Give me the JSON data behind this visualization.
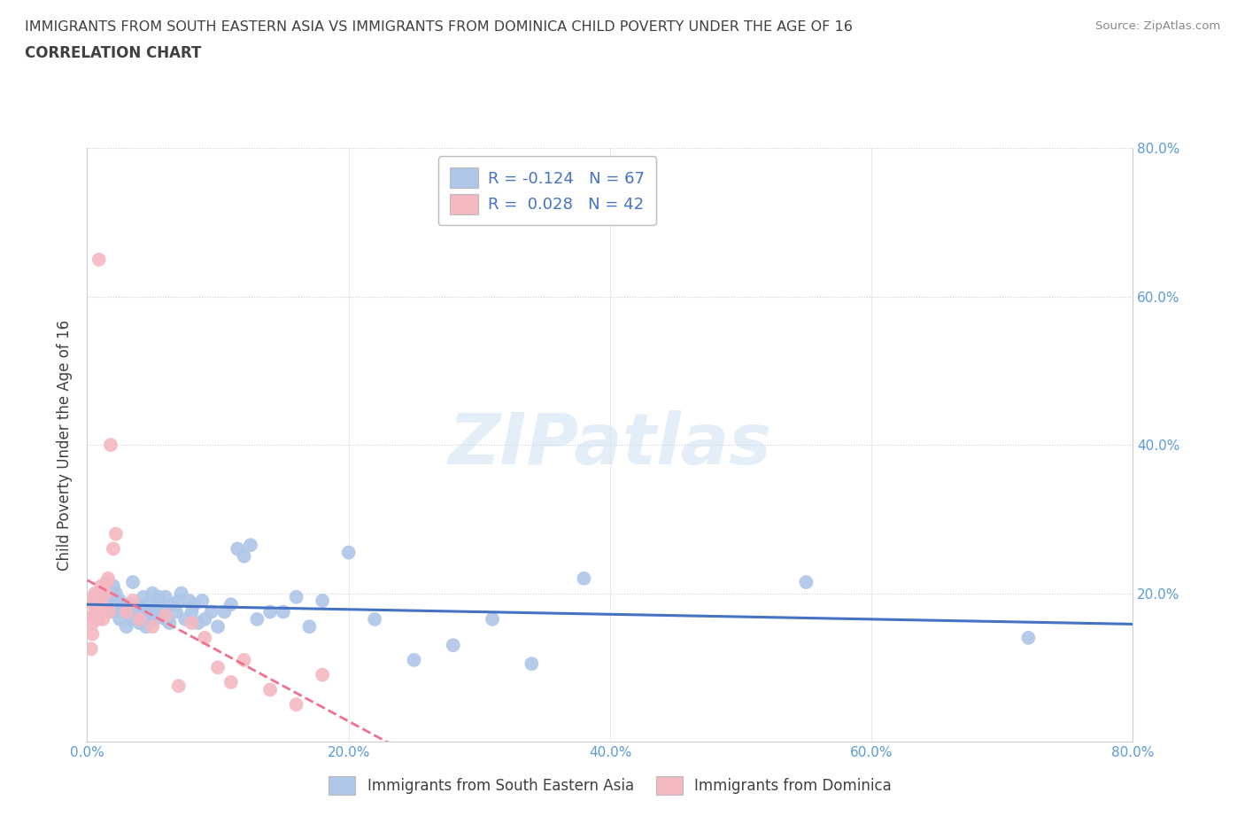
{
  "title": "IMMIGRANTS FROM SOUTH EASTERN ASIA VS IMMIGRANTS FROM DOMINICA CHILD POVERTY UNDER THE AGE OF 16",
  "subtitle": "CORRELATION CHART",
  "source": "Source: ZipAtlas.com",
  "ylabel": "Child Poverty Under the Age of 16",
  "xlim": [
    0.0,
    0.8
  ],
  "ylim": [
    0.0,
    0.8
  ],
  "xticks": [
    0.0,
    0.2,
    0.4,
    0.6,
    0.8
  ],
  "yticks": [
    0.0,
    0.2,
    0.4,
    0.6,
    0.8
  ],
  "right_yticks": [
    0.2,
    0.4,
    0.6,
    0.8
  ],
  "blue_R": -0.124,
  "blue_N": 67,
  "pink_R": 0.028,
  "pink_N": 42,
  "blue_color": "#aec6e8",
  "pink_color": "#f4b8c1",
  "blue_line_color": "#4472c4",
  "pink_line_color": "#f07090",
  "title_color": "#404040",
  "axis_label_color": "#5b9bd5",
  "grid_color": "#cccccc",
  "watermark": "ZIPatlas",
  "legend_label_blue": "Immigrants from South Eastern Asia",
  "legend_label_pink": "Immigrants from Dominica",
  "blue_scatter_x": [
    0.01,
    0.012,
    0.015,
    0.018,
    0.02,
    0.02,
    0.022,
    0.022,
    0.025,
    0.025,
    0.028,
    0.03,
    0.03,
    0.032,
    0.033,
    0.035,
    0.035,
    0.038,
    0.04,
    0.04,
    0.042,
    0.043,
    0.045,
    0.047,
    0.048,
    0.05,
    0.05,
    0.052,
    0.055,
    0.055,
    0.058,
    0.06,
    0.06,
    0.063,
    0.065,
    0.068,
    0.07,
    0.072,
    0.075,
    0.078,
    0.08,
    0.082,
    0.085,
    0.088,
    0.09,
    0.095,
    0.1,
    0.105,
    0.11,
    0.115,
    0.12,
    0.125,
    0.13,
    0.14,
    0.15,
    0.16,
    0.17,
    0.18,
    0.2,
    0.22,
    0.25,
    0.28,
    0.31,
    0.34,
    0.38,
    0.55,
    0.72
  ],
  "blue_scatter_y": [
    0.175,
    0.195,
    0.185,
    0.2,
    0.175,
    0.21,
    0.185,
    0.2,
    0.165,
    0.19,
    0.18,
    0.155,
    0.175,
    0.185,
    0.165,
    0.175,
    0.215,
    0.18,
    0.16,
    0.185,
    0.175,
    0.195,
    0.155,
    0.175,
    0.185,
    0.17,
    0.2,
    0.165,
    0.185,
    0.195,
    0.175,
    0.165,
    0.195,
    0.16,
    0.185,
    0.175,
    0.19,
    0.2,
    0.165,
    0.19,
    0.175,
    0.185,
    0.16,
    0.19,
    0.165,
    0.175,
    0.155,
    0.175,
    0.185,
    0.26,
    0.25,
    0.265,
    0.165,
    0.175,
    0.175,
    0.195,
    0.155,
    0.19,
    0.255,
    0.165,
    0.11,
    0.13,
    0.165,
    0.105,
    0.22,
    0.215,
    0.14
  ],
  "pink_scatter_x": [
    0.003,
    0.004,
    0.004,
    0.005,
    0.005,
    0.005,
    0.006,
    0.006,
    0.007,
    0.007,
    0.008,
    0.008,
    0.009,
    0.009,
    0.01,
    0.01,
    0.011,
    0.011,
    0.012,
    0.012,
    0.013,
    0.014,
    0.015,
    0.016,
    0.017,
    0.018,
    0.02,
    0.022,
    0.03,
    0.035,
    0.04,
    0.05,
    0.06,
    0.07,
    0.08,
    0.09,
    0.1,
    0.11,
    0.12,
    0.14,
    0.16,
    0.18
  ],
  "pink_scatter_y": [
    0.125,
    0.145,
    0.16,
    0.17,
    0.185,
    0.195,
    0.175,
    0.2,
    0.175,
    0.195,
    0.165,
    0.185,
    0.18,
    0.65,
    0.175,
    0.195,
    0.185,
    0.21,
    0.165,
    0.175,
    0.18,
    0.2,
    0.215,
    0.22,
    0.175,
    0.4,
    0.26,
    0.28,
    0.175,
    0.19,
    0.165,
    0.155,
    0.17,
    0.075,
    0.16,
    0.14,
    0.1,
    0.08,
    0.11,
    0.07,
    0.05,
    0.09
  ]
}
